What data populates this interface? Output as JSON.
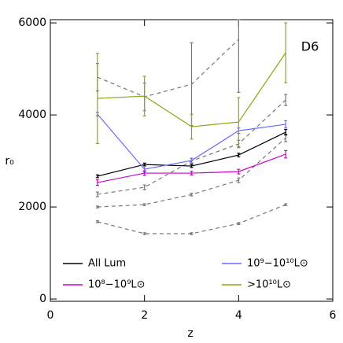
{
  "chart_data": {
    "type": "line",
    "x_label": "z",
    "y_label": "r₀",
    "annotation": "D6",
    "xlim": [
      0,
      6
    ],
    "xticks": [
      0,
      2,
      4,
      6
    ],
    "ylim": [
      -50,
      6070
    ],
    "yticks": [
      0,
      2000,
      4000,
      6000
    ],
    "x": [
      1,
      2,
      3,
      4,
      5
    ],
    "series": [
      {
        "name": "All Lum",
        "color": "#000000",
        "values": [
          2667,
          2923,
          2889,
          3128,
          3624
        ],
        "errors": [
          30,
          30,
          30,
          40,
          60
        ]
      },
      {
        "name": "10⁹−10¹⁰L⊙",
        "color": "#6a6aff",
        "values": [
          4017,
          2820,
          3009,
          3658,
          3795
        ],
        "errors": [
          40,
          60,
          50,
          60,
          80
        ]
      },
      {
        "name": "10⁸−10⁹L⊙",
        "color": "#cc00cc",
        "values": [
          2530,
          2735,
          2735,
          2769,
          3145
        ],
        "errors": [
          60,
          50,
          40,
          50,
          80
        ]
      },
      {
        "name": ">10¹⁰L⊙",
        "color": "#8aa61a",
        "values": [
          4359,
          4410,
          3744,
          3846,
          5350
        ],
        "errors": [
          980,
          430,
          270,
          530,
          650
        ]
      }
    ],
    "dashed_series": [
      {
        "color": "#777777",
        "values": [
          4820,
          4393,
          4667,
          5641,
          null
        ],
        "errors": [
          300,
          300,
          900,
          1150,
          null
        ]
      },
      {
        "color": "#777777",
        "values": [
          2274,
          2427,
          3000,
          3370,
          4325
        ],
        "errors": [
          50,
          50,
          60,
          80,
          120
        ]
      },
      {
        "color": "#777777",
        "values": [
          2000,
          2050,
          2270,
          2580,
          3500
        ],
        "errors": [
          20,
          20,
          30,
          50,
          80
        ]
      },
      {
        "color": "#777777",
        "values": [
          1680,
          1420,
          1420,
          1640,
          2050
        ],
        "errors": [
          20,
          20,
          20,
          20,
          20
        ]
      }
    ]
  }
}
